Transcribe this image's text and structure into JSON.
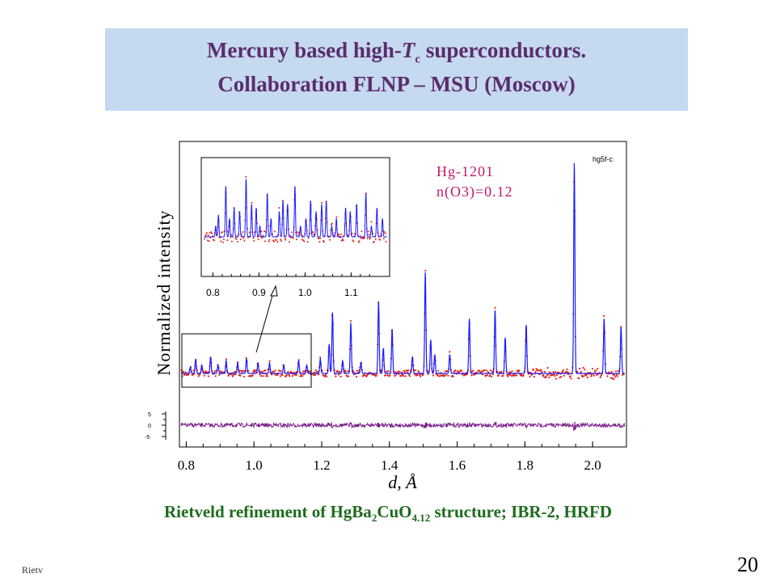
{
  "slide": {
    "title_line1_a": "Mercury based high-",
    "title_line1_T": "T",
    "title_line1_sub": "c",
    "title_line1_b": " superconductors.",
    "title_line2": "Collaboration FLNP – MSU (Moscow)",
    "caption_a": "Rietveld refinement of HgBa",
    "caption_sub1": "2",
    "caption_b": "CuO",
    "caption_sub2": "4.12",
    "caption_c": " structure; IBR-2, HRFD",
    "footer_left": "Rietv",
    "slide_number": "20"
  },
  "colors": {
    "title_bg": "#c5d9f1",
    "title_text": "#5b2d6b",
    "caption_text": "#1e6b1e",
    "calc_line": "#1a1aff",
    "observed_points": "#e0201a",
    "difference": "#7a1a8a",
    "annotation": "#c2186b"
  },
  "chart_data": {
    "type": "scatter",
    "tag": "hg5f-c",
    "annotation_line1": "Hg-1201",
    "annotation_line2": "n(O3)=0.12",
    "xlabel": "d, Å",
    "ylabel": "Normalized intensity",
    "xlim": [
      0.78,
      2.1
    ],
    "x_ticks": [
      "0.8",
      "1.0",
      "1.2",
      "1.4",
      "1.6",
      "1.8",
      "2.0"
    ],
    "x_tick_values": [
      0.8,
      1.0,
      1.2,
      1.4,
      1.6,
      1.8,
      2.0
    ],
    "diff_ticks": [
      "5",
      "0",
      "-5"
    ],
    "inset": {
      "xlim": [
        0.78,
        1.18
      ],
      "x_ticks": [
        "0.8",
        "0.9",
        "1.0",
        "1.1"
      ],
      "x_tick_values": [
        0.8,
        0.9,
        1.0,
        1.1
      ]
    },
    "series": [
      {
        "name": "Observed",
        "style": "points"
      },
      {
        "name": "Calculated",
        "style": "line"
      },
      {
        "name": "Difference",
        "style": "line"
      }
    ],
    "peaks": [
      {
        "d": 0.812,
        "h": 0.03
      },
      {
        "d": 0.828,
        "h": 0.07
      },
      {
        "d": 0.846,
        "h": 0.04
      },
      {
        "d": 0.872,
        "h": 0.08
      },
      {
        "d": 0.894,
        "h": 0.04
      },
      {
        "d": 0.918,
        "h": 0.06
      },
      {
        "d": 0.952,
        "h": 0.05
      },
      {
        "d": 0.978,
        "h": 0.07
      },
      {
        "d": 1.012,
        "h": 0.05
      },
      {
        "d": 1.046,
        "h": 0.05
      },
      {
        "d": 1.088,
        "h": 0.04
      },
      {
        "d": 1.132,
        "h": 0.06
      },
      {
        "d": 1.156,
        "h": 0.04
      },
      {
        "d": 1.196,
        "h": 0.07
      },
      {
        "d": 1.222,
        "h": 0.14
      },
      {
        "d": 1.232,
        "h": 0.29
      },
      {
        "d": 1.262,
        "h": 0.06
      },
      {
        "d": 1.286,
        "h": 0.24
      },
      {
        "d": 1.316,
        "h": 0.05
      },
      {
        "d": 1.368,
        "h": 0.34
      },
      {
        "d": 1.382,
        "h": 0.12
      },
      {
        "d": 1.408,
        "h": 0.21
      },
      {
        "d": 1.468,
        "h": 0.08
      },
      {
        "d": 1.506,
        "h": 0.48
      },
      {
        "d": 1.522,
        "h": 0.16
      },
      {
        "d": 1.534,
        "h": 0.09
      },
      {
        "d": 1.578,
        "h": 0.09
      },
      {
        "d": 1.636,
        "h": 0.26
      },
      {
        "d": 1.712,
        "h": 0.3
      },
      {
        "d": 1.742,
        "h": 0.17
      },
      {
        "d": 1.804,
        "h": 0.23
      },
      {
        "d": 1.946,
        "h": 1.0
      },
      {
        "d": 2.034,
        "h": 0.26
      },
      {
        "d": 2.084,
        "h": 0.22
      }
    ]
  }
}
